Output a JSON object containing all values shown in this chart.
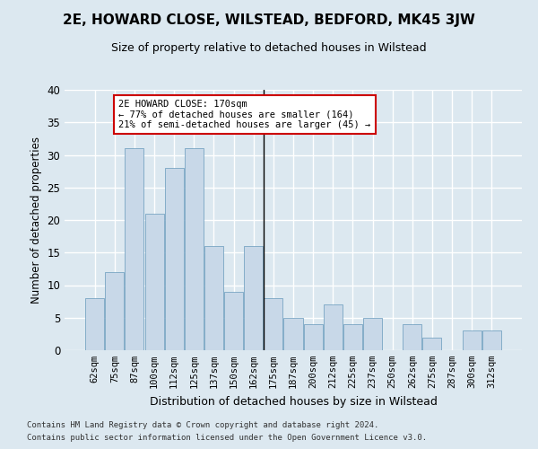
{
  "title": "2E, HOWARD CLOSE, WILSTEAD, BEDFORD, MK45 3JW",
  "subtitle": "Size of property relative to detached houses in Wilstead",
  "xlabel": "Distribution of detached houses by size in Wilstead",
  "ylabel": "Number of detached properties",
  "categories": [
    "62sqm",
    "75sqm",
    "87sqm",
    "100sqm",
    "112sqm",
    "125sqm",
    "137sqm",
    "150sqm",
    "162sqm",
    "175sqm",
    "187sqm",
    "200sqm",
    "212sqm",
    "225sqm",
    "237sqm",
    "250sqm",
    "262sqm",
    "275sqm",
    "287sqm",
    "300sqm",
    "312sqm"
  ],
  "values": [
    8,
    12,
    31,
    21,
    28,
    31,
    16,
    9,
    16,
    8,
    5,
    4,
    7,
    4,
    5,
    0,
    4,
    2,
    0,
    3,
    3
  ],
  "bar_color": "#c8d8e8",
  "bar_edge_color": "#6699bb",
  "highlight_line_index": 9,
  "annotation_text": "2E HOWARD CLOSE: 170sqm\n← 77% of detached houses are smaller (164)\n21% of semi-detached houses are larger (45) →",
  "annotation_box_color": "#ffffff",
  "annotation_box_edge": "#cc0000",
  "background_color": "#dce8f0",
  "grid_color": "#ffffff",
  "ylim": [
    0,
    40
  ],
  "yticks": [
    0,
    5,
    10,
    15,
    20,
    25,
    30,
    35,
    40
  ],
  "title_fontsize": 11,
  "subtitle_fontsize": 9,
  "footer_line1": "Contains HM Land Registry data © Crown copyright and database right 2024.",
  "footer_line2": "Contains public sector information licensed under the Open Government Licence v3.0."
}
